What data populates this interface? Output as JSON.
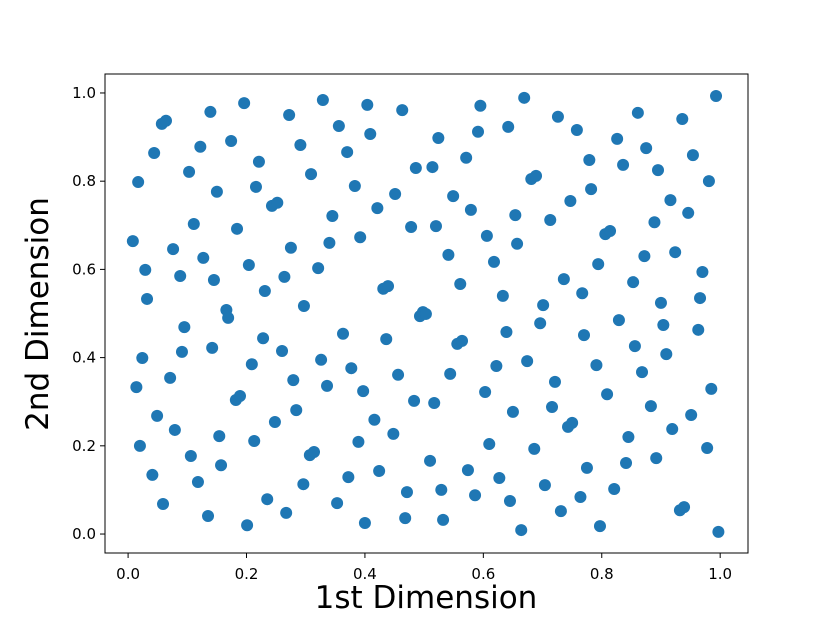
{
  "chart_data": {
    "type": "scatter",
    "x_label": "1st Dimension",
    "y_label": "2nd Dimension",
    "color": "#1f77b4",
    "xlim": [
      -0.039,
      1.047
    ],
    "ylim": [
      -0.043,
      1.043
    ],
    "xticks": [
      {
        "value": 0,
        "label": "0.0"
      },
      0.2,
      0.4,
      0.6,
      0.8,
      {
        "value": 1,
        "label": "1.0"
      }
    ],
    "yticks": [
      {
        "value": 0,
        "label": "0.0"
      },
      0.2,
      0.4,
      0.6,
      0.8,
      {
        "value": 1,
        "label": "1.0"
      }
    ],
    "x": [
      0.008,
      0.017,
      0.029,
      0.032,
      0.024,
      0.014,
      0.02,
      0.041,
      0.059,
      0.049,
      0.044,
      0.057,
      0.064,
      0.076,
      0.088,
      0.071,
      0.079,
      0.091,
      0.095,
      0.103,
      0.111,
      0.106,
      0.118,
      0.122,
      0.127,
      0.135,
      0.139,
      0.142,
      0.145,
      0.15,
      0.154,
      0.157,
      0.166,
      0.169,
      0.174,
      0.182,
      0.189,
      0.184,
      0.196,
      0.201,
      0.204,
      0.209,
      0.213,
      0.216,
      0.221,
      0.228,
      0.231,
      0.235,
      0.243,
      0.252,
      0.248,
      0.26,
      0.264,
      0.267,
      0.272,
      0.275,
      0.279,
      0.284,
      0.291,
      0.296,
      0.297,
      0.307,
      0.314,
      0.309,
      0.321,
      0.326,
      0.329,
      0.336,
      0.34,
      0.345,
      0.353,
      0.356,
      0.363,
      0.37,
      0.372,
      0.377,
      0.383,
      0.389,
      0.392,
      0.397,
      0.4,
      0.404,
      0.409,
      0.416,
      0.421,
      0.424,
      0.431,
      0.439,
      0.436,
      0.448,
      0.451,
      0.456,
      0.463,
      0.468,
      0.471,
      0.478,
      0.483,
      0.486,
      0.493,
      0.498,
      0.503,
      0.51,
      0.514,
      0.517,
      0.52,
      0.524,
      0.529,
      0.532,
      0.541,
      0.544,
      0.549,
      0.556,
      0.561,
      0.564,
      0.571,
      0.574,
      0.579,
      0.586,
      0.591,
      0.595,
      0.603,
      0.606,
      0.61,
      0.618,
      0.622,
      0.627,
      0.633,
      0.639,
      0.642,
      0.645,
      0.65,
      0.654,
      0.657,
      0.664,
      0.669,
      0.674,
      0.681,
      0.689,
      0.686,
      0.696,
      0.701,
      0.704,
      0.713,
      0.716,
      0.721,
      0.726,
      0.731,
      0.736,
      0.743,
      0.75,
      0.747,
      0.758,
      0.764,
      0.767,
      0.77,
      0.775,
      0.779,
      0.782,
      0.791,
      0.794,
      0.797,
      0.806,
      0.809,
      0.814,
      0.821,
      0.826,
      0.829,
      0.836,
      0.841,
      0.845,
      0.853,
      0.856,
      0.861,
      0.868,
      0.872,
      0.875,
      0.883,
      0.889,
      0.892,
      0.895,
      0.9,
      0.904,
      0.909,
      0.916,
      0.919,
      0.924,
      0.932,
      0.939,
      0.936,
      0.946,
      0.951,
      0.954,
      0.963,
      0.966,
      0.97,
      0.978,
      0.981,
      0.985,
      0.993,
      0.997
    ],
    "values": [
      0.664,
      0.798,
      0.599,
      0.533,
      0.399,
      0.333,
      0.2,
      0.134,
      0.068,
      0.268,
      0.864,
      0.93,
      0.937,
      0.646,
      0.585,
      0.354,
      0.236,
      0.413,
      0.469,
      0.821,
      0.703,
      0.177,
      0.118,
      0.878,
      0.626,
      0.041,
      0.957,
      0.422,
      0.576,
      0.776,
      0.222,
      0.156,
      0.508,
      0.49,
      0.891,
      0.304,
      0.313,
      0.692,
      0.977,
      0.02,
      0.61,
      0.385,
      0.211,
      0.787,
      0.844,
      0.444,
      0.551,
      0.079,
      0.744,
      0.751,
      0.254,
      0.415,
      0.583,
      0.048,
      0.95,
      0.649,
      0.349,
      0.281,
      0.882,
      0.113,
      0.517,
      0.179,
      0.186,
      0.816,
      0.603,
      0.395,
      0.984,
      0.336,
      0.66,
      0.721,
      0.07,
      0.925,
      0.454,
      0.866,
      0.129,
      0.376,
      0.789,
      0.209,
      0.673,
      0.324,
      0.025,
      0.973,
      0.907,
      0.259,
      0.739,
      0.143,
      0.556,
      0.562,
      0.442,
      0.227,
      0.771,
      0.361,
      0.961,
      0.036,
      0.095,
      0.696,
      0.302,
      0.83,
      0.494,
      0.503,
      0.499,
      0.166,
      0.832,
      0.297,
      0.698,
      0.898,
      0.1,
      0.032,
      0.633,
      0.363,
      0.766,
      0.431,
      0.567,
      0.438,
      0.853,
      0.145,
      0.735,
      0.088,
      0.912,
      0.971,
      0.322,
      0.676,
      0.204,
      0.617,
      0.381,
      0.127,
      0.54,
      0.458,
      0.923,
      0.075,
      0.277,
      0.723,
      0.658,
      0.009,
      0.989,
      0.392,
      0.805,
      0.812,
      0.193,
      0.478,
      0.519,
      0.111,
      0.712,
      0.288,
      0.345,
      0.946,
      0.052,
      0.578,
      0.243,
      0.252,
      0.755,
      0.916,
      0.084,
      0.546,
      0.451,
      0.15,
      0.848,
      0.782,
      0.383,
      0.612,
      0.018,
      0.68,
      0.317,
      0.687,
      0.102,
      0.896,
      0.485,
      0.837,
      0.161,
      0.22,
      0.571,
      0.426,
      0.955,
      0.367,
      0.63,
      0.875,
      0.29,
      0.707,
      0.172,
      0.825,
      0.524,
      0.474,
      0.408,
      0.757,
      0.238,
      0.639,
      0.054,
      0.061,
      0.941,
      0.728,
      0.27,
      0.859,
      0.463,
      0.535,
      0.594,
      0.195,
      0.8,
      0.329,
      0.993,
      0.005
    ]
  }
}
